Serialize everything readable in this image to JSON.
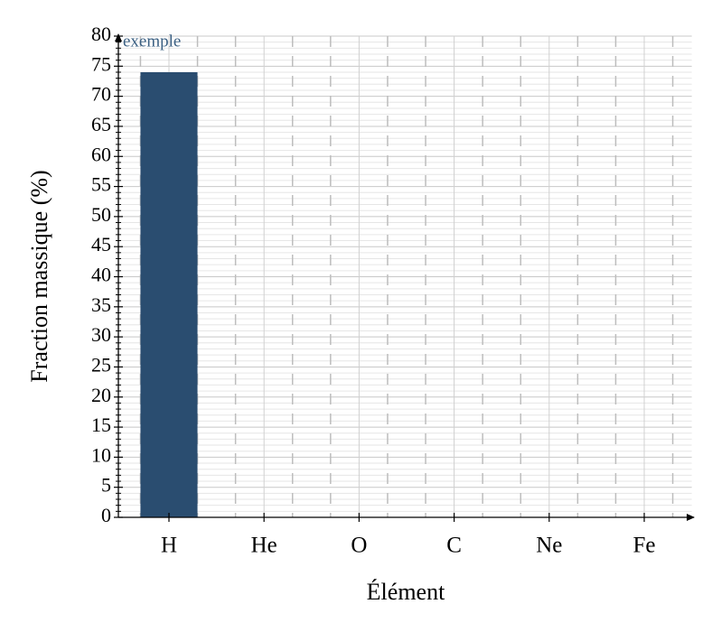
{
  "chart_data": {
    "type": "bar",
    "annotation": "exemple",
    "xlabel": "Élément",
    "ylabel": "Fraction massique (%)",
    "categories": [
      "H",
      "He",
      "O",
      "C",
      "Ne",
      "Fe"
    ],
    "values": [
      74,
      0,
      0,
      0,
      0,
      0
    ],
    "color": "#2a4d70",
    "ylim": [
      0,
      80
    ],
    "yticks": [
      0,
      5,
      10,
      15,
      20,
      25,
      30,
      35,
      40,
      45,
      50,
      55,
      60,
      65,
      70,
      75,
      80
    ],
    "grid": true,
    "minor_grid": true
  }
}
